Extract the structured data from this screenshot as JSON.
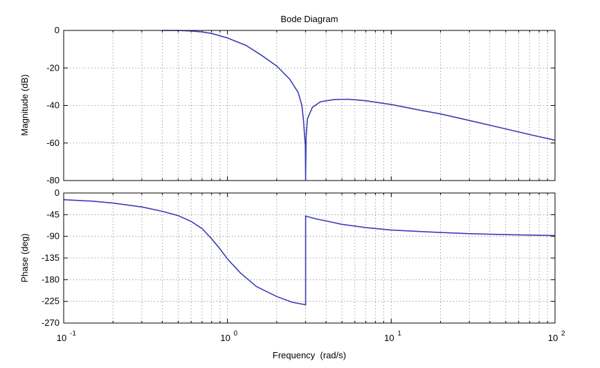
{
  "chart_data": {
    "type": "line",
    "title": "Bode Diagram",
    "xlabel": "Frequency  (rad/s)",
    "xscale": "log",
    "xlim": [
      0.1,
      100
    ],
    "x_ticks": [
      {
        "value": 0.1,
        "base": "10",
        "exp": "-1"
      },
      {
        "value": 1,
        "base": "10",
        "exp": "0"
      },
      {
        "value": 10,
        "base": "10",
        "exp": "1"
      },
      {
        "value": 100,
        "base": "10",
        "exp": "2"
      }
    ],
    "grid": true,
    "line_color": "#3b3bb5",
    "subplots": [
      {
        "name": "magnitude",
        "ylabel": "Magnitude (dB)",
        "ylim": [
          -80,
          0
        ],
        "yticks": [
          0,
          -20,
          -40,
          -60,
          -80
        ],
        "x": [
          0.4,
          0.5,
          0.6,
          0.7,
          0.8,
          1.0,
          1.3,
          1.6,
          2.0,
          2.4,
          2.7,
          2.85,
          2.92,
          2.95,
          2.99,
          3.0,
          3.02,
          3.08,
          3.3,
          3.7,
          4.5,
          5.5,
          7.0,
          10,
          15,
          20,
          30,
          50,
          70,
          100
        ],
        "y": [
          0,
          0,
          -0.3,
          -0.8,
          -1.6,
          -4,
          -8,
          -13,
          -19,
          -26,
          -33,
          -40,
          -49,
          -55,
          -61,
          -80,
          -57,
          -47,
          -41,
          -38,
          -36.8,
          -36.7,
          -37.5,
          -39.5,
          -42.5,
          -44.5,
          -48,
          -52.5,
          -55.5,
          -58.5
        ]
      },
      {
        "name": "phase",
        "ylabel": "Phase (deg)",
        "ylim": [
          -270,
          0
        ],
        "yticks": [
          0,
          -45,
          -90,
          -135,
          -180,
          -225,
          -270
        ],
        "x": [
          0.1,
          0.15,
          0.2,
          0.3,
          0.4,
          0.5,
          0.6,
          0.7,
          0.8,
          0.9,
          1.0,
          1.2,
          1.5,
          2.0,
          2.5,
          3.0,
          3.0,
          3.5,
          4.0,
          5.0,
          7.0,
          10,
          15,
          20,
          30,
          50,
          100
        ],
        "y": [
          -14,
          -17,
          -21,
          -29,
          -38,
          -47,
          -59,
          -74,
          -95,
          -116,
          -137,
          -166,
          -194,
          -215,
          -227,
          -232,
          -48,
          -54,
          -58,
          -65,
          -72,
          -77,
          -80,
          -82,
          -84.5,
          -86.5,
          -88.5
        ]
      }
    ]
  }
}
